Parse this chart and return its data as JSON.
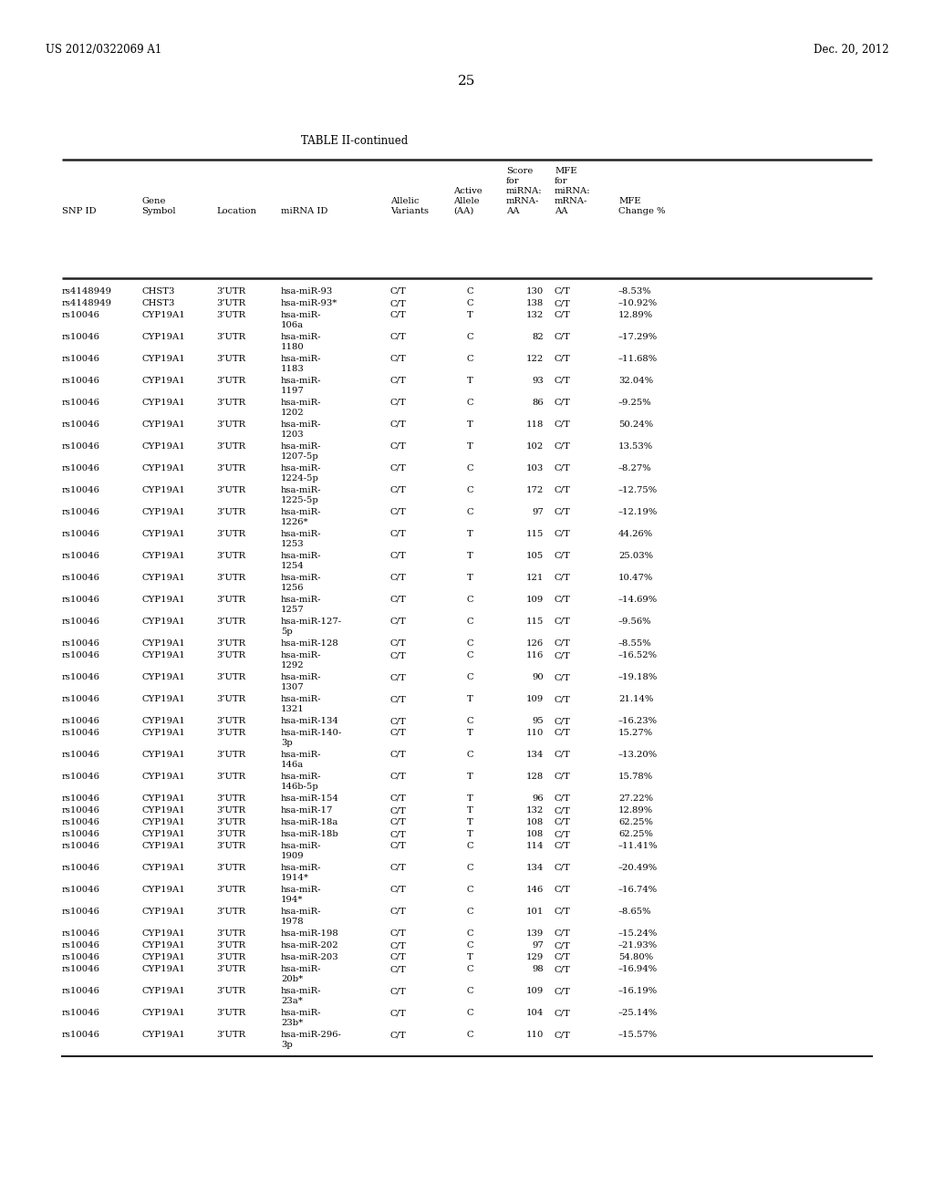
{
  "header_left": "US 2012/0322069 A1",
  "header_right": "Dec. 20, 2012",
  "page_number": "25",
  "table_title": "TABLE II-continued",
  "col_headers": [
    [
      "SNP ID",
      ""
    ],
    [
      "Gene",
      "Symbol"
    ],
    [
      "Location",
      ""
    ],
    [
      "miRNA ID",
      ""
    ],
    [
      "Allelic",
      "Variants"
    ],
    [
      "Active",
      "Allele",
      "(AA)"
    ],
    [
      "Score",
      "for",
      "miRNA:",
      "mRNA-",
      "AA"
    ],
    [
      "MFE",
      "for",
      "miRNA:",
      "mRNA-",
      "AA"
    ],
    [
      "MFE",
      "Change %"
    ]
  ],
  "rows": [
    [
      "rs4148949",
      "CHST3",
      "3’UTR",
      "hsa-miR-93",
      "C/T",
      "C",
      "130",
      "C/T",
      "–8.53%"
    ],
    [
      "rs4148949",
      "CHST3",
      "3’UTR",
      "hsa-miR-93*",
      "C/T",
      "C",
      "138",
      "C/T",
      "–10.92%"
    ],
    [
      "rs10046",
      "CYP19A1",
      "3’UTR",
      "hsa-miR-",
      "C/T",
      "T",
      "132",
      "C/T",
      "12.89%",
      "106a"
    ],
    [
      "rs10046",
      "CYP19A1",
      "3’UTR",
      "hsa-miR-",
      "C/T",
      "C",
      "82",
      "C/T",
      "–17.29%",
      "1180"
    ],
    [
      "rs10046",
      "CYP19A1",
      "3’UTR",
      "hsa-miR-",
      "C/T",
      "C",
      "122",
      "C/T",
      "–11.68%",
      "1183"
    ],
    [
      "rs10046",
      "CYP19A1",
      "3’UTR",
      "hsa-miR-",
      "C/T",
      "T",
      "93",
      "C/T",
      "32.04%",
      "1197"
    ],
    [
      "rs10046",
      "CYP19A1",
      "3’UTR",
      "hsa-miR-",
      "C/T",
      "C",
      "86",
      "C/T",
      "–9.25%",
      "1202"
    ],
    [
      "rs10046",
      "CYP19A1",
      "3’UTR",
      "hsa-miR-",
      "C/T",
      "T",
      "118",
      "C/T",
      "50.24%",
      "1203"
    ],
    [
      "rs10046",
      "CYP19A1",
      "3’UTR",
      "hsa-miR-",
      "C/T",
      "T",
      "102",
      "C/T",
      "13.53%",
      "1207-5p"
    ],
    [
      "rs10046",
      "CYP19A1",
      "3’UTR",
      "hsa-miR-",
      "C/T",
      "C",
      "103",
      "C/T",
      "–8.27%",
      "1224-5p"
    ],
    [
      "rs10046",
      "CYP19A1",
      "3’UTR",
      "hsa-miR-",
      "C/T",
      "C",
      "172",
      "C/T",
      "–12.75%",
      "1225-5p"
    ],
    [
      "rs10046",
      "CYP19A1",
      "3’UTR",
      "hsa-miR-",
      "C/T",
      "C",
      "97",
      "C/T",
      "–12.19%",
      "1226*"
    ],
    [
      "rs10046",
      "CYP19A1",
      "3’UTR",
      "hsa-miR-",
      "C/T",
      "T",
      "115",
      "C/T",
      "44.26%",
      "1253"
    ],
    [
      "rs10046",
      "CYP19A1",
      "3’UTR",
      "hsa-miR-",
      "C/T",
      "T",
      "105",
      "C/T",
      "25.03%",
      "1254"
    ],
    [
      "rs10046",
      "CYP19A1",
      "3’UTR",
      "hsa-miR-",
      "C/T",
      "T",
      "121",
      "C/T",
      "10.47%",
      "1256"
    ],
    [
      "rs10046",
      "CYP19A1",
      "3’UTR",
      "hsa-miR-",
      "C/T",
      "C",
      "109",
      "C/T",
      "–14.69%",
      "1257"
    ],
    [
      "rs10046",
      "CYP19A1",
      "3’UTR",
      "hsa-miR-127-",
      "C/T",
      "C",
      "115",
      "C/T",
      "–9.56%",
      "5p"
    ],
    [
      "rs10046",
      "CYP19A1",
      "3’UTR",
      "hsa-miR-128",
      "C/T",
      "C",
      "126",
      "C/T",
      "–8.55%"
    ],
    [
      "rs10046",
      "CYP19A1",
      "3’UTR",
      "hsa-miR-",
      "C/T",
      "C",
      "116",
      "C/T",
      "–16.52%",
      "1292"
    ],
    [
      "rs10046",
      "CYP19A1",
      "3’UTR",
      "hsa-miR-",
      "C/T",
      "C",
      "90",
      "C/T",
      "–19.18%",
      "1307"
    ],
    [
      "rs10046",
      "CYP19A1",
      "3’UTR",
      "hsa-miR-",
      "C/T",
      "T",
      "109",
      "C/T",
      "21.14%",
      "1321"
    ],
    [
      "rs10046",
      "CYP19A1",
      "3’UTR",
      "hsa-miR-134",
      "C/T",
      "C",
      "95",
      "C/T",
      "–16.23%"
    ],
    [
      "rs10046",
      "CYP19A1",
      "3’UTR",
      "hsa-miR-140-",
      "C/T",
      "T",
      "110",
      "C/T",
      "15.27%",
      "3p"
    ],
    [
      "rs10046",
      "CYP19A1",
      "3’UTR",
      "hsa-miR-",
      "C/T",
      "C",
      "134",
      "C/T",
      "–13.20%",
      "146a"
    ],
    [
      "rs10046",
      "CYP19A1",
      "3’UTR",
      "hsa-miR-",
      "C/T",
      "T",
      "128",
      "C/T",
      "15.78%",
      "146b-5p"
    ],
    [
      "rs10046",
      "CYP19A1",
      "3’UTR",
      "hsa-miR-154",
      "C/T",
      "T",
      "96",
      "C/T",
      "27.22%"
    ],
    [
      "rs10046",
      "CYP19A1",
      "3’UTR",
      "hsa-miR-17",
      "C/T",
      "T",
      "132",
      "C/T",
      "12.89%"
    ],
    [
      "rs10046",
      "CYP19A1",
      "3’UTR",
      "hsa-miR-18a",
      "C/T",
      "T",
      "108",
      "C/T",
      "62.25%"
    ],
    [
      "rs10046",
      "CYP19A1",
      "3’UTR",
      "hsa-miR-18b",
      "C/T",
      "T",
      "108",
      "C/T",
      "62.25%"
    ],
    [
      "rs10046",
      "CYP19A1",
      "3’UTR",
      "hsa-miR-",
      "C/T",
      "C",
      "114",
      "C/T",
      "–11.41%",
      "1909"
    ],
    [
      "rs10046",
      "CYP19A1",
      "3’UTR",
      "hsa-miR-",
      "C/T",
      "C",
      "134",
      "C/T",
      "–20.49%",
      "1914*"
    ],
    [
      "rs10046",
      "CYP19A1",
      "3’UTR",
      "hsa-miR-",
      "C/T",
      "C",
      "146",
      "C/T",
      "–16.74%",
      "194*"
    ],
    [
      "rs10046",
      "CYP19A1",
      "3’UTR",
      "hsa-miR-",
      "C/T",
      "C",
      "101",
      "C/T",
      "–8.65%",
      "1978"
    ],
    [
      "rs10046",
      "CYP19A1",
      "3’UTR",
      "hsa-miR-198",
      "C/T",
      "C",
      "139",
      "C/T",
      "–15.24%"
    ],
    [
      "rs10046",
      "CYP19A1",
      "3’UTR",
      "hsa-miR-202",
      "C/T",
      "C",
      "97",
      "C/T",
      "–21.93%"
    ],
    [
      "rs10046",
      "CYP19A1",
      "3’UTR",
      "hsa-miR-203",
      "C/T",
      "T",
      "129",
      "C/T",
      "54.80%"
    ],
    [
      "rs10046",
      "CYP19A1",
      "3’UTR",
      "hsa-miR-",
      "C/T",
      "C",
      "98",
      "C/T",
      "–16.94%",
      "20b*"
    ],
    [
      "rs10046",
      "CYP19A1",
      "3’UTR",
      "hsa-miR-",
      "C/T",
      "C",
      "109",
      "C/T",
      "–16.19%",
      "23a*"
    ],
    [
      "rs10046",
      "CYP19A1",
      "3’UTR",
      "hsa-miR-",
      "C/T",
      "C",
      "104",
      "C/T",
      "–25.14%",
      "23b*"
    ],
    [
      "rs10046",
      "CYP19A1",
      "3’UTR",
      "hsa-miR-296-",
      "C/T",
      "C",
      "110",
      "C/T",
      "–15.57%",
      "3p"
    ]
  ],
  "background_color": "#ffffff",
  "text_color": "#000000",
  "line_color": "#333333",
  "font_size": 7.2,
  "small_font_size": 7.2,
  "header_font_size": 8.5,
  "title_font_size": 8.5,
  "page_num_font_size": 11
}
